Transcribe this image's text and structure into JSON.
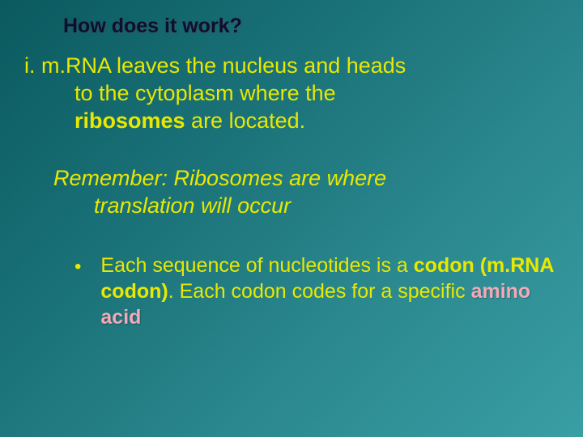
{
  "slide": {
    "background_gradient": [
      "#0a5a5f",
      "#1a7278",
      "#2a888e",
      "#3a9ea5"
    ],
    "title": {
      "text": "How does it work?",
      "color": "#0e0e2e",
      "fontsize": 25,
      "font_weight": "bold"
    },
    "main_point": {
      "marker": "i.",
      "line1": "m.RNA leaves the nucleus and heads",
      "line2_a": "to the cytoplasm where the",
      "line3_bold": "ribosomes",
      "line3_rest": " are located.",
      "color": "#e8e800",
      "fontsize": 27
    },
    "remember": {
      "line1": "Remember:  Ribosomes are where",
      "line2": "translation will occur",
      "color": "#e8e800",
      "fontsize": 27,
      "font_style": "italic"
    },
    "bullet": {
      "dot": "•",
      "part1": "Each sequence of nucleotides is a ",
      "bold1": "codon (m.RNA codon)",
      "part2": ".  Each codon codes for a specific ",
      "amino": "amino acid",
      "color": "#e8e800",
      "amino_color": "#f4a8b8",
      "fontsize": 25
    }
  }
}
